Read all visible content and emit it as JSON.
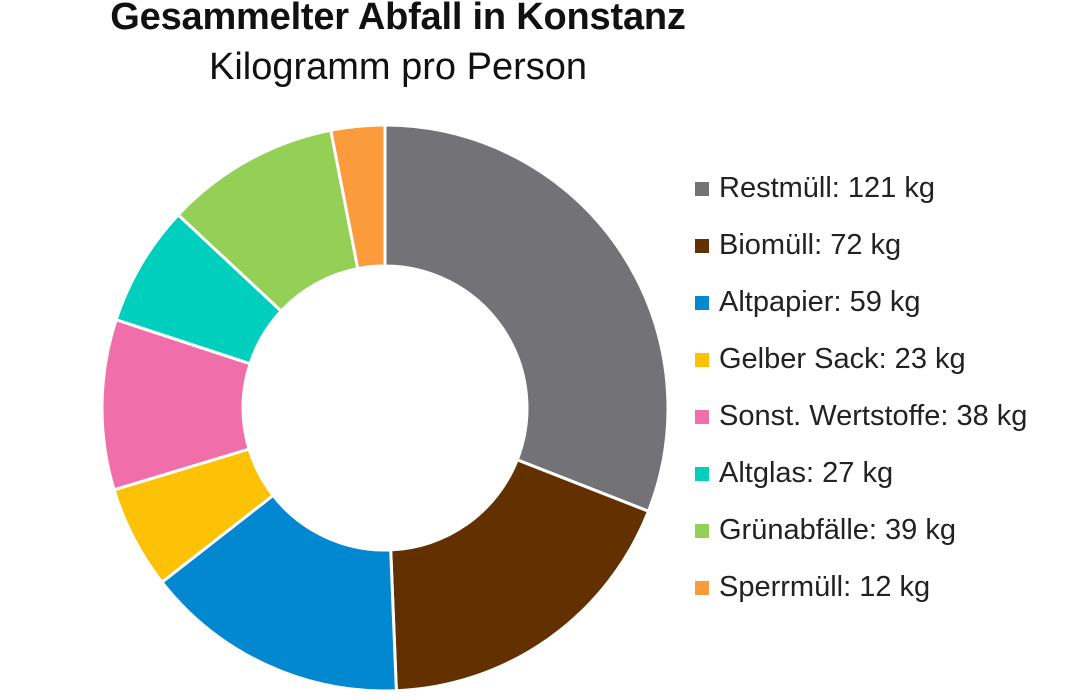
{
  "chart_data": {
    "type": "pie",
    "variant": "donut",
    "title": "Gesammelter Abfall in Konstanz",
    "subtitle": "Kilogramm pro Person",
    "unit": "kg",
    "slices": [
      {
        "label": "Restmüll",
        "value": 121,
        "color": "#737276",
        "legend": "Restmüll: 121 kg"
      },
      {
        "label": "Biomüll",
        "value": 72,
        "color": "#633100",
        "legend": "Biomüll: 72 kg"
      },
      {
        "label": "Altpapier",
        "value": 59,
        "color": "#0288d1",
        "legend": "Altpapier: 59 kg"
      },
      {
        "label": "Gelber Sack",
        "value": 23,
        "color": "#fdc106",
        "legend": "Gelber Sack: 23 kg"
      },
      {
        "label": "Sonst. Wertstoffe",
        "value": 38,
        "color": "#f06fab",
        "legend": "Sonst. Wertstoffe: 38 kg"
      },
      {
        "label": "Altglas",
        "value": 27,
        "color": "#00cfbe",
        "legend": "Altglas: 27 kg"
      },
      {
        "label": "Grünabfälle",
        "value": 39,
        "color": "#93d055",
        "legend": "Grünabfälle: 39 kg"
      },
      {
        "label": "Sperrmüll",
        "value": 12,
        "color": "#fb9b3b",
        "legend": "Sperrmüll: 12 kg"
      }
    ],
    "legend_position": "right"
  }
}
